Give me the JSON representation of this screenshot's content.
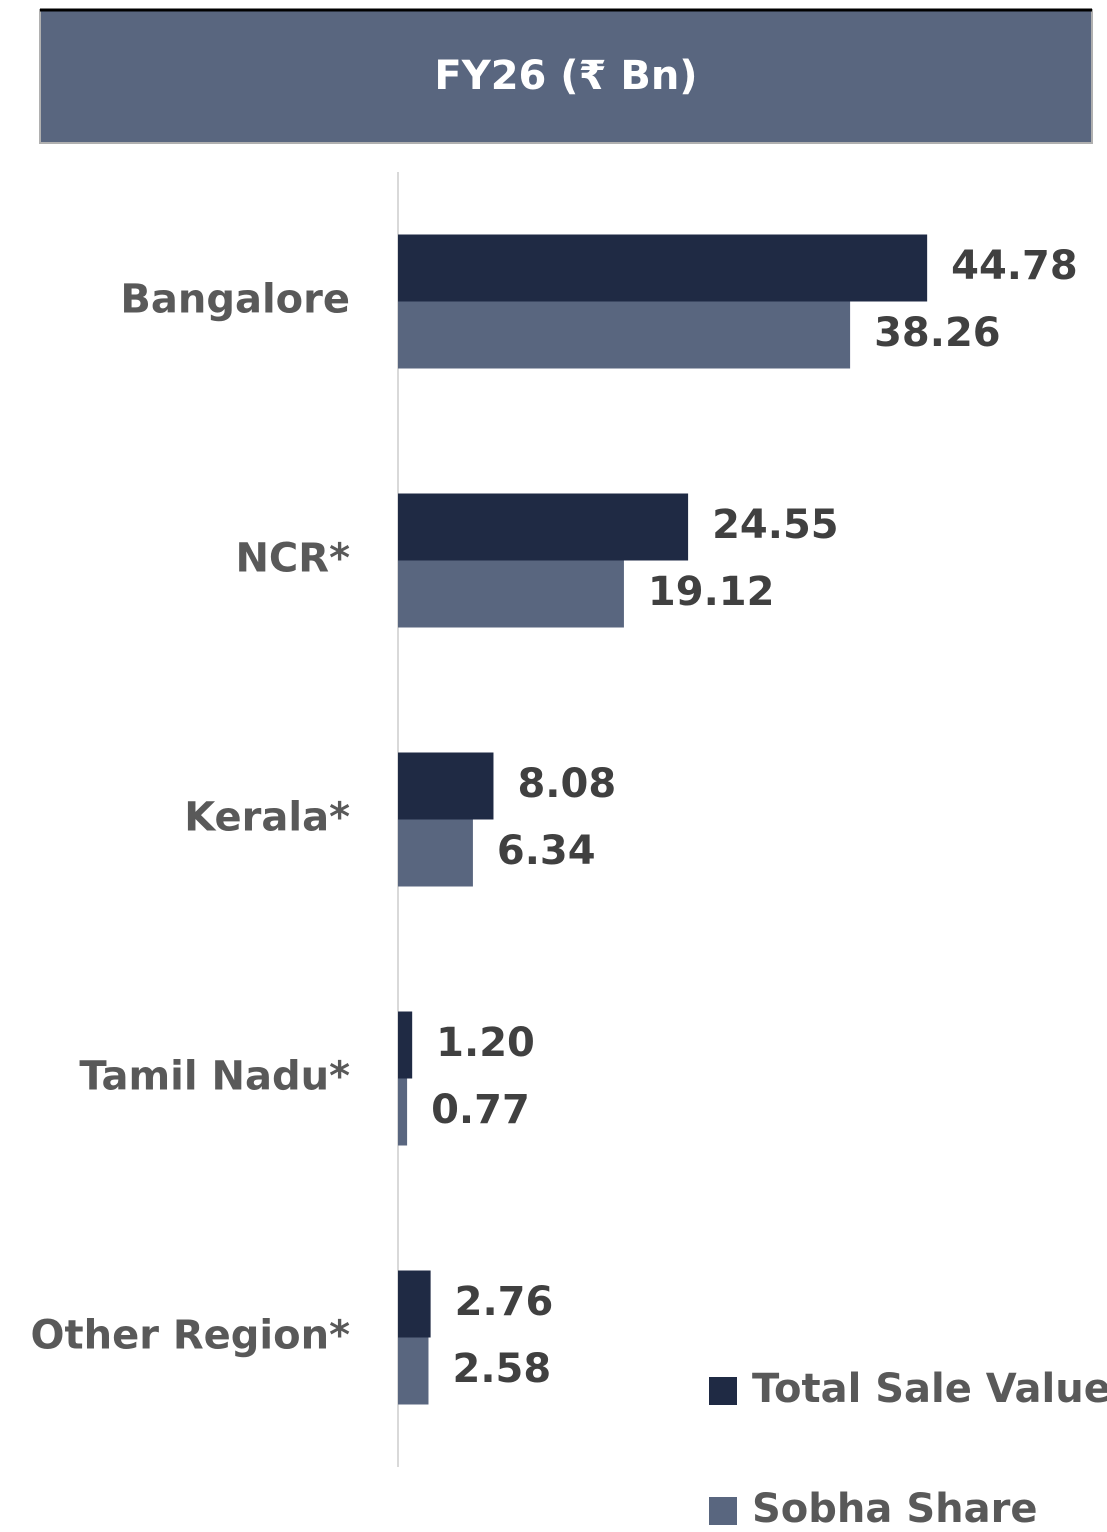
{
  "chart_data": {
    "type": "hbar",
    "title": "FY26 (₹ Bn)",
    "categories": [
      "Bangalore",
      "NCR*",
      "Kerala*",
      "Tamil Nadu*",
      "Other Region*"
    ],
    "series": [
      {
        "name": "Total Sale Value",
        "color": "#1f2a44",
        "values": [
          44.78,
          24.55,
          8.08,
          1.2,
          2.76
        ],
        "value_labels": [
          "44.78",
          "24.55",
          "8.08",
          "1.20",
          "2.76"
        ]
      },
      {
        "name": "Sobha Share",
        "color": "#59667f",
        "values": [
          38.26,
          19.12,
          6.34,
          0.77,
          2.58
        ],
        "value_labels": [
          "38.26",
          "19.12",
          "6.34",
          "0.77",
          "2.58"
        ]
      }
    ],
    "xlim": [
      0,
      60
    ],
    "legend": "bottom-right"
  }
}
